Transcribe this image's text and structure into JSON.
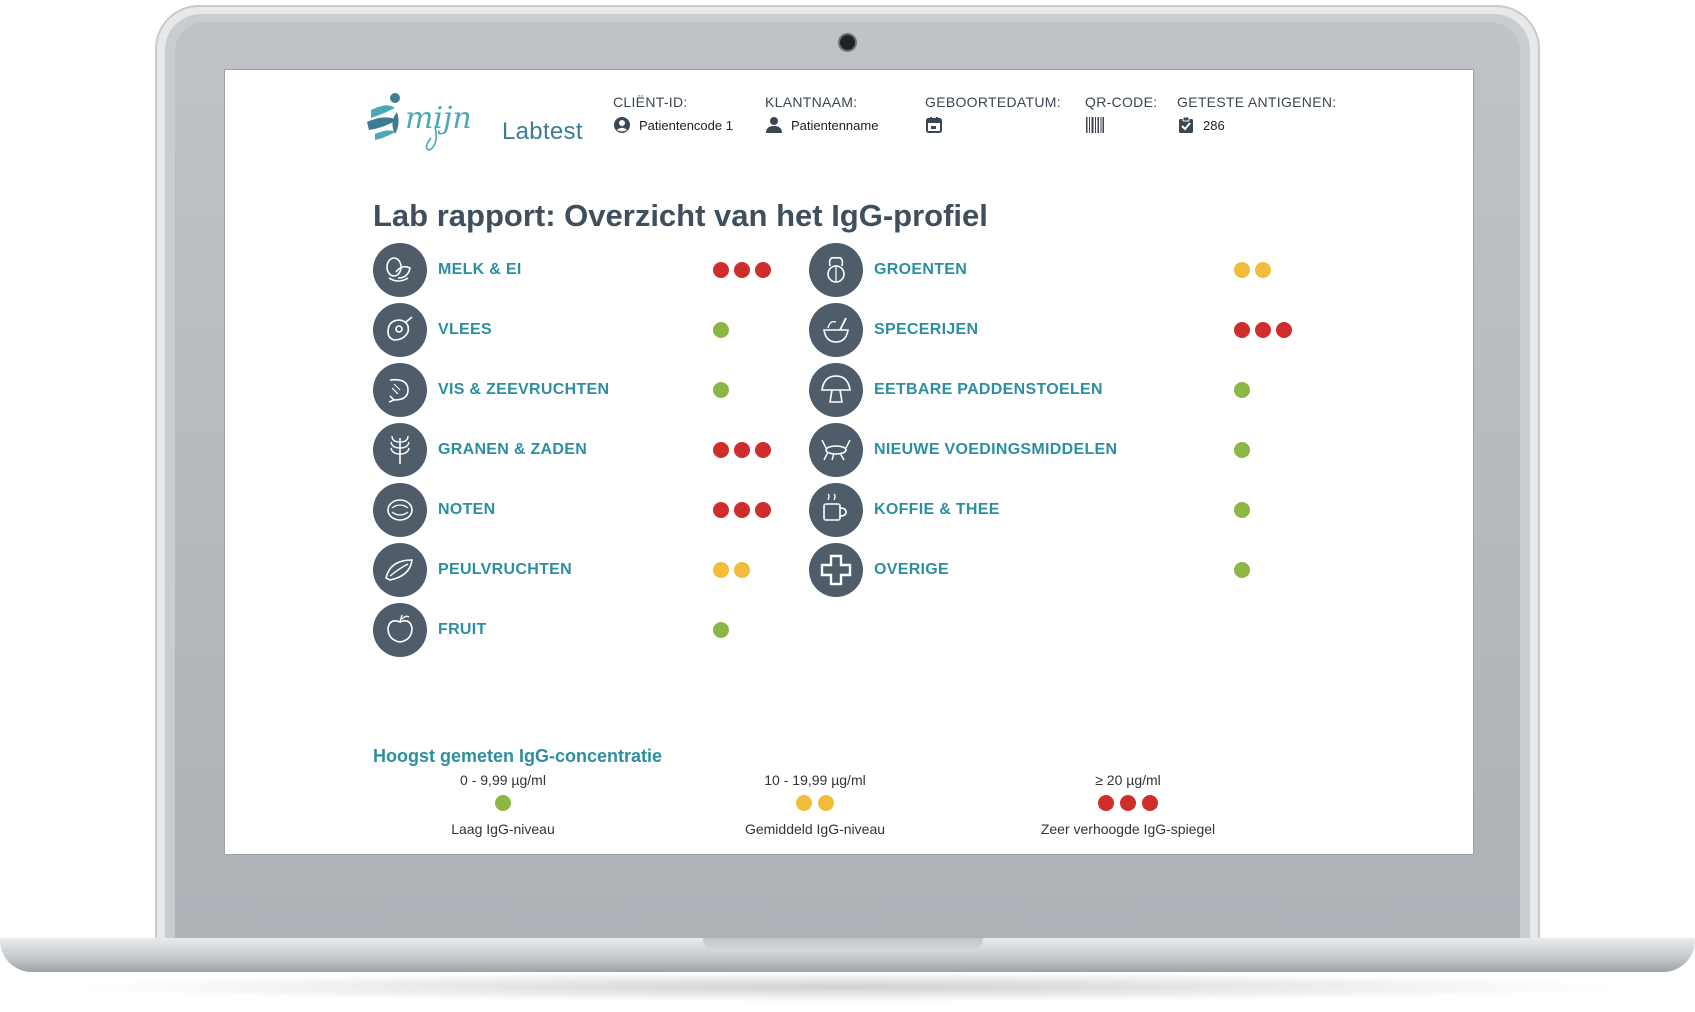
{
  "logo": {
    "script_text": "mijn",
    "text": "Labtest"
  },
  "header": {
    "client_id": {
      "label": "CLIËNT-ID:",
      "value": "Patientencode 1"
    },
    "client_name": {
      "label": "KLANTNAAM:",
      "value": "Patientenname"
    },
    "birthdate": {
      "label": "GEBOORTEDATUM:",
      "value": ""
    },
    "qr_code": {
      "label": "QR-CODE:"
    },
    "antigens": {
      "label": "GETESTE ANTIGENEN:",
      "value": "286"
    }
  },
  "title": "Lab rapport: Overzicht van het IgG-profiel",
  "categories_left": [
    {
      "label": "MELK & EI",
      "level": 3,
      "icon": "egg-icon"
    },
    {
      "label": "VLEES",
      "level": 1,
      "icon": "meat-icon"
    },
    {
      "label": "VIS & ZEEVRUCHTEN",
      "level": 1,
      "icon": "shrimp-icon"
    },
    {
      "label": "GRANEN & ZADEN",
      "level": 3,
      "icon": "grain-icon"
    },
    {
      "label": "NOTEN",
      "level": 3,
      "icon": "nut-icon"
    },
    {
      "label": "PEULVRUCHTEN",
      "level": 2,
      "icon": "legume-icon"
    },
    {
      "label": "FRUIT",
      "level": 1,
      "icon": "apple-icon"
    }
  ],
  "categories_right": [
    {
      "label": "GROENTEN",
      "level": 2,
      "icon": "vegetable-icon"
    },
    {
      "label": "SPECERIJEN",
      "level": 3,
      "icon": "spice-icon"
    },
    {
      "label": "EETBARE PADDENSTOELEN",
      "level": 1,
      "icon": "mushroom-icon"
    },
    {
      "label": "NIEUWE VOEDINGSMIDDELEN",
      "level": 1,
      "icon": "cricket-icon"
    },
    {
      "label": "KOFFIE & THEE",
      "level": 1,
      "icon": "cup-icon"
    },
    {
      "label": "OVERIGE",
      "level": 1,
      "icon": "cross-icon"
    }
  ],
  "legend": {
    "title": "Hoogst gemeten IgG-concentratie",
    "items": [
      {
        "range": "0 - 9,99 µg/ml",
        "name": "Laag IgG-niveau",
        "level": 1
      },
      {
        "range": "10 - 19,99 µg/ml",
        "name": "Gemiddeld IgG-niveau",
        "level": 2
      },
      {
        "range": "≥ 20 µg/ml",
        "name": "Zeer verhoogde IgG-spiegel",
        "level": 3
      }
    ]
  },
  "colors": {
    "accent": "#2c8fa0",
    "title": "#3f4f5e",
    "icon_bg": "#4f5c6a",
    "low": "#8cb744",
    "medium": "#f1bd3b",
    "high": "#d02d2d"
  }
}
